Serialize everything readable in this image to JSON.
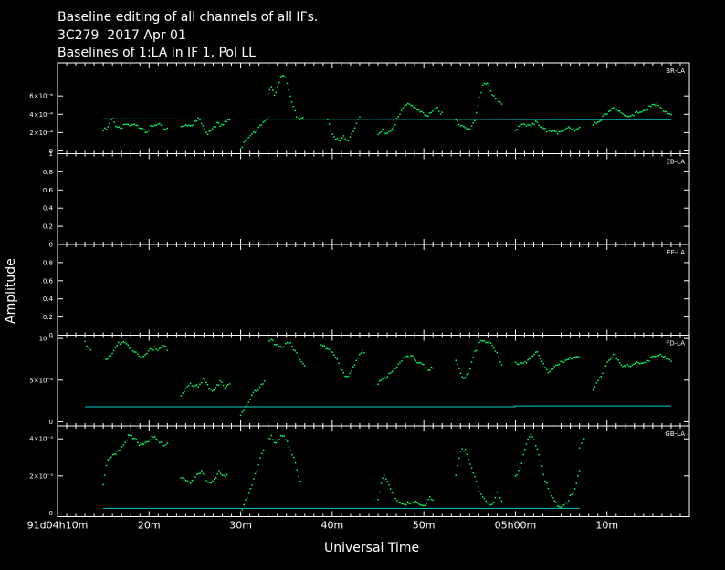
{
  "header": {
    "line1": "Baseline editing of all channels of all IFs.",
    "line2": "3C279  2017 Apr 01",
    "line3": "Baselines of 1:LA in IF 1, Pol LL"
  },
  "colors": {
    "background": "#000000",
    "axes": "#ffffff",
    "data": "#00ff66",
    "model": "#00cccc"
  },
  "chart_data": {
    "type": "scatter",
    "xlabel": "Universal Time",
    "ylabel": "Amplitude",
    "x_unit": "minutes after 04h00m (day 91)",
    "xlim": [
      10,
      79
    ],
    "x_ticks": [
      {
        "v": 10,
        "l": "91d04h10m"
      },
      {
        "v": 20,
        "l": "20m"
      },
      {
        "v": 30,
        "l": "30m"
      },
      {
        "v": 40,
        "l": "40m"
      },
      {
        "v": 50,
        "l": "50m"
      },
      {
        "v": 60,
        "l": "05h00m"
      },
      {
        "v": 70,
        "l": "10m"
      }
    ],
    "panels": [
      {
        "baseline": "BR-LA",
        "ylim": [
          -3e-05,
          0.00096
        ],
        "y_ticks": [
          {
            "v": 0,
            "l": "0"
          },
          {
            "v": 0.0002,
            "l": "2×10⁻⁴"
          },
          {
            "v": 0.0004,
            "l": "4×10⁻⁴"
          },
          {
            "v": 0.0006,
            "l": "6×10⁻⁴"
          }
        ],
        "model": [
          [
            15,
            0.00035
          ],
          [
            77,
            0.00034
          ]
        ],
        "segments": [
          {
            "x0": 15,
            "x1": 22,
            "y": [
              0.00022,
              0.00024,
              0.00035,
              0.00028,
              0.00025,
              0.0003,
              0.00026,
              0.00028,
              0.00026,
              0.00027,
              0.00022,
              0.00025,
              0.00027,
              0.00028,
              0.00024,
              0.00025
            ]
          },
          {
            "x0": 23.5,
            "x1": 28.8,
            "y": [
              0.00026,
              0.0003,
              0.00028,
              0.0003,
              0.00035,
              0.00025,
              0.0002,
              0.00024,
              0.0003,
              0.00026,
              0.0003,
              0.00035
            ]
          },
          {
            "x0": 30,
            "x1": 33,
            "y": [
              4e-05,
              9e-05,
              0.00012,
              0.00016,
              0.0002,
              0.00025,
              0.0003,
              0.00033,
              0.00036
            ]
          },
          {
            "x0": 33,
            "x1": 36.8,
            "y": [
              0.00062,
              0.0007,
              0.0006,
              0.00075,
              0.00085,
              0.00078,
              0.00065,
              0.0005,
              0.0004,
              0.00036,
              0.00037
            ]
          },
          {
            "x0": 39.5,
            "x1": 43,
            "y": [
              0.00036,
              0.0002,
              0.00012,
              0.0001,
              0.00015,
              0.00012,
              0.0002,
              0.00028,
              0.00035
            ]
          },
          {
            "x0": 45,
            "x1": 52,
            "y": [
              0.00018,
              0.00022,
              0.0002,
              0.00025,
              0.00035,
              0.00045,
              0.00052,
              0.0005,
              0.00045,
              0.0004,
              0.00035,
              0.00045,
              0.00048,
              0.0004
            ]
          },
          {
            "x0": 53.5,
            "x1": 58.5,
            "y": [
              0.00034,
              0.0003,
              0.00025,
              0.00022,
              0.0003,
              0.00055,
              0.00075,
              0.00072,
              0.0006,
              0.00055,
              0.00053
            ]
          },
          {
            "x0": 60,
            "x1": 67,
            "y": [
              0.00022,
              0.00026,
              0.0003,
              0.00028,
              0.00032,
              0.00025,
              0.00022,
              0.00024,
              0.00022,
              0.0002,
              0.00022,
              0.00026,
              0.00024,
              0.00027
            ]
          },
          {
            "x0": 68.5,
            "x1": 77,
            "y": [
              0.0003,
              0.00035,
              0.0004,
              0.00048,
              0.00042,
              0.00035,
              0.0004,
              0.00045,
              0.00048,
              0.0005,
              0.00045,
              0.0004
            ]
          }
        ]
      },
      {
        "baseline": "EB-LA",
        "ylim": [
          0,
          1
        ],
        "y_ticks": [
          {
            "v": 0,
            "l": "0"
          },
          {
            "v": 0.2,
            "l": "0.2"
          },
          {
            "v": 0.4,
            "l": "0.4"
          },
          {
            "v": 0.6,
            "l": "0.6"
          },
          {
            "v": 0.8,
            "l": "0.8"
          },
          {
            "v": 1,
            "l": "1"
          }
        ],
        "model": [],
        "segments": []
      },
      {
        "baseline": "EF-LA",
        "ylim": [
          0,
          1
        ],
        "y_ticks": [
          {
            "v": 0,
            "l": "0"
          },
          {
            "v": 0.2,
            "l": "0.2"
          },
          {
            "v": 0.4,
            "l": "0.4"
          },
          {
            "v": 0.6,
            "l": "0.6"
          },
          {
            "v": 0.8,
            "l": "0.8"
          }
        ],
        "model": [],
        "segments": []
      },
      {
        "baseline": "FD-LA",
        "ylim": [
          -5e-05,
          0.00104
        ],
        "y_ticks": [
          {
            "v": 0,
            "l": "0"
          },
          {
            "v": 0.0005,
            "l": "5×10⁻⁴"
          },
          {
            "v": 0.001,
            "l": "10⁻³"
          }
        ],
        "model": [
          [
            13,
            0.00018
          ],
          [
            60,
            0.00018
          ],
          [
            60,
            0.00019
          ],
          [
            77,
            0.00019
          ]
        ],
        "segments": [
          {
            "x0": 13,
            "x1": 13.6,
            "y": [
              0.00094,
              0.0009,
              0.00088
            ]
          },
          {
            "x0": 15.3,
            "x1": 22,
            "y": [
              0.00075,
              0.00078,
              0.00085,
              0.00095,
              0.00097,
              0.00093,
              0.00085,
              0.0008,
              0.00075,
              0.00082,
              0.0009,
              0.00088,
              0.00085,
              0.0009,
              0.00087
            ]
          },
          {
            "x0": 23.5,
            "x1": 28.8,
            "y": [
              0.0003,
              0.0004,
              0.00048,
              0.00044,
              0.0004,
              0.0005,
              0.00045,
              0.00038,
              0.00044,
              0.00048,
              0.0004,
              0.00045
            ]
          },
          {
            "x0": 30,
            "x1": 32.6,
            "y": [
              0.0001,
              0.00015,
              0.0002,
              0.00028,
              0.00035,
              0.0004,
              0.00045,
              0.0005
            ]
          },
          {
            "x0": 33,
            "x1": 37,
            "y": [
              0.00095,
              0.00097,
              0.00095,
              0.00092,
              0.0009,
              0.00095,
              0.00093,
              0.00085,
              0.0008,
              0.00075,
              0.0007
            ]
          },
          {
            "x0": 38.8,
            "x1": 43.5,
            "y": [
              0.00095,
              0.0009,
              0.00085,
              0.0008,
              0.0007,
              0.0006,
              0.00055,
              0.0006,
              0.0007,
              0.0008,
              0.00085
            ]
          },
          {
            "x0": 45,
            "x1": 51,
            "y": [
              0.00045,
              0.0005,
              0.00055,
              0.0006,
              0.00065,
              0.0007,
              0.00075,
              0.00078,
              0.0008,
              0.00075,
              0.0007,
              0.00065,
              0.0006,
              0.00065
            ]
          },
          {
            "x0": 53.5,
            "x1": 58.5,
            "y": [
              0.00075,
              0.0006,
              0.0005,
              0.0006,
              0.0008,
              0.00095,
              0.001,
              0.00095,
              0.0009,
              0.0008,
              0.0007
            ]
          },
          {
            "x0": 60,
            "x1": 67,
            "y": [
              0.0007,
              0.00068,
              0.00072,
              0.0008,
              0.00085,
              0.0007,
              0.0006,
              0.00065,
              0.0007,
              0.0007,
              0.00075,
              0.0008,
              0.00078
            ]
          },
          {
            "x0": 68.5,
            "x1": 77,
            "y": [
              0.0004,
              0.00055,
              0.0007,
              0.0008,
              0.0007,
              0.00065,
              0.0007,
              0.00072,
              0.00075,
              0.00078,
              0.0008,
              0.00075
            ]
          }
        ]
      },
      {
        "baseline": "GB-LA",
        "ylim": [
          -0.0002,
          0.0047
        ],
        "y_ticks": [
          {
            "v": 0,
            "l": "0"
          },
          {
            "v": 0.002,
            "l": "2×10⁻³"
          },
          {
            "v": 0.004,
            "l": "4×10⁻³"
          }
        ],
        "model": [
          [
            15,
            0.00025
          ],
          [
            67,
            0.00025
          ]
        ],
        "segments": [
          {
            "x0": 15,
            "x1": 22,
            "y": [
              0.0016,
              0.0028,
              0.003,
              0.0033,
              0.0035,
              0.0038,
              0.0042,
              0.004,
              0.0038,
              0.0037,
              0.0039,
              0.004,
              0.0041,
              0.0038,
              0.0037,
              0.0038
            ]
          },
          {
            "x0": 23.5,
            "x1": 28.5,
            "y": [
              0.0018,
              0.0019,
              0.0017,
              0.0018,
              0.002,
              0.0022,
              0.0018,
              0.0017,
              0.0019,
              0.0022,
              0.0019,
              0.002
            ]
          },
          {
            "x0": 30,
            "x1": 32.5,
            "y": [
              0.0001,
              0.0004,
              0.0008,
              0.0012,
              0.0018,
              0.0023,
              0.003,
              0.0035
            ]
          },
          {
            "x0": 33,
            "x1": 36.5,
            "y": [
              0.0039,
              0.0041,
              0.0038,
              0.004,
              0.0043,
              0.0039,
              0.0035,
              0.003,
              0.0024,
              0.0018
            ]
          },
          {
            "x0": 45,
            "x1": 51,
            "y": [
              0.0008,
              0.002,
              0.0018,
              0.0012,
              0.0009,
              0.0006,
              0.0005,
              0.0005,
              0.0004,
              0.0006,
              0.0005,
              0.0004,
              0.0008,
              0.0006
            ]
          },
          {
            "x0": 53.5,
            "x1": 58.5,
            "y": [
              0.002,
              0.0033,
              0.0035,
              0.0028,
              0.002,
              0.0012,
              0.0008,
              0.0006,
              0.0005,
              0.0012,
              0.0006
            ]
          },
          {
            "x0": 60,
            "x1": 67,
            "y": [
              0.002,
              0.0025,
              0.0035,
              0.0042,
              0.0038,
              0.003,
              0.0018,
              0.001,
              0.0006,
              0.0004,
              0.0005,
              0.0008,
              0.0012,
              0.0022
            ]
          },
          {
            "x0": 67,
            "x1": 67.5,
            "y": [
              0.0035,
              0.004
            ]
          }
        ]
      }
    ]
  }
}
